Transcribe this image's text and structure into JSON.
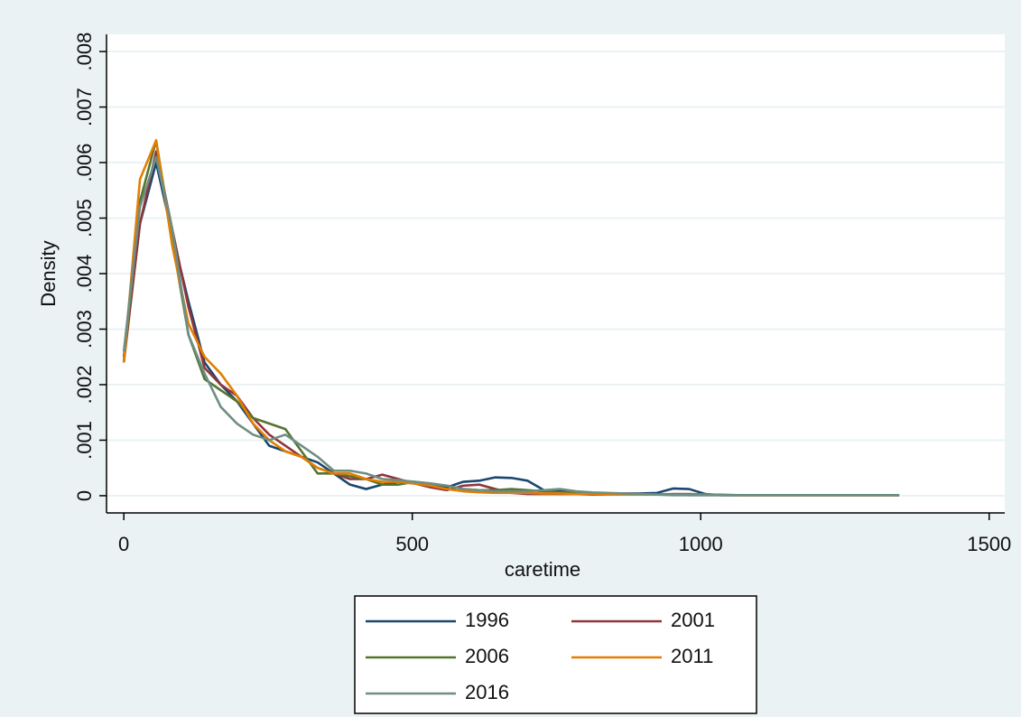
{
  "chart_data": {
    "type": "line",
    "x_label": "caretime",
    "y_label": "Density",
    "x": [
      0,
      28,
      56,
      84,
      112,
      140,
      168,
      196,
      224,
      252,
      280,
      308,
      336,
      364,
      392,
      420,
      448,
      476,
      504,
      532,
      560,
      588,
      616,
      644,
      672,
      700,
      728,
      756,
      784,
      812,
      840,
      868,
      896,
      924,
      952,
      980,
      1008,
      1036,
      1064,
      1092,
      1120,
      1148,
      1176,
      1204,
      1232,
      1260,
      1288,
      1316,
      1344
    ],
    "series": [
      {
        "name": "1996",
        "color": "#1a476f",
        "values": [
          0.0025,
          0.0049,
          0.006,
          0.0047,
          0.0035,
          0.0024,
          0.002,
          0.0017,
          0.0013,
          0.0009,
          0.0008,
          0.0007,
          0.0006,
          0.0004,
          0.0002,
          0.00012,
          0.0002,
          0.00025,
          0.00022,
          0.0002,
          0.00015,
          0.00025,
          0.00027,
          0.00033,
          0.00032,
          0.00027,
          0.0001,
          8e-05,
          6e-05,
          5e-05,
          4e-05,
          4e-05,
          4e-05,
          5e-05,
          0.00013,
          0.00012,
          3e-05,
          1e-05,
          1e-05,
          1e-05,
          1e-05,
          1e-05,
          1e-05,
          1e-05,
          1e-05,
          1e-05,
          1e-05,
          1e-05,
          1e-05
        ]
      },
      {
        "name": "2001",
        "color": "#90353b",
        "values": [
          0.0024,
          0.0049,
          0.0062,
          0.0048,
          0.0034,
          0.0023,
          0.002,
          0.0018,
          0.0014,
          0.0011,
          0.0009,
          0.0007,
          0.0005,
          0.0004,
          0.0003,
          0.0003,
          0.00038,
          0.0003,
          0.00022,
          0.00015,
          0.0001,
          0.00018,
          0.0002,
          0.00012,
          5e-05,
          3e-05,
          3e-05,
          3e-05,
          3e-05,
          2e-05,
          2e-05,
          2e-05,
          2e-05,
          2e-05,
          3e-05,
          3e-05,
          2e-05,
          1e-05,
          1e-05,
          1e-05,
          1e-05,
          1e-05,
          1e-05,
          1e-05,
          1e-05,
          1e-05,
          1e-05,
          1e-05,
          1e-05
        ]
      },
      {
        "name": "2006",
        "color": "#55752f",
        "values": [
          0.0024,
          0.0053,
          0.0064,
          0.0046,
          0.0029,
          0.0021,
          0.0019,
          0.0017,
          0.0014,
          0.0013,
          0.0012,
          0.0008,
          0.0004,
          0.0004,
          0.00035,
          0.0003,
          0.0002,
          0.0002,
          0.00025,
          0.00022,
          0.00018,
          0.00012,
          0.0001,
          0.0001,
          0.00012,
          0.0001,
          8e-05,
          6e-05,
          6e-05,
          4e-05,
          3e-05,
          3e-05,
          2e-05,
          2e-05,
          2e-05,
          1e-05,
          1e-05,
          1e-05,
          1e-05,
          1e-05,
          1e-05,
          1e-05,
          1e-05,
          1e-05,
          1e-05,
          1e-05,
          1e-05,
          1e-05,
          1e-05
        ]
      },
      {
        "name": "2011",
        "color": "#e37e00",
        "values": [
          0.0024,
          0.0057,
          0.0064,
          0.0045,
          0.0031,
          0.0025,
          0.0022,
          0.0018,
          0.0013,
          0.001,
          0.0008,
          0.0007,
          0.0005,
          0.0004,
          0.0004,
          0.0003,
          0.00025,
          0.00025,
          0.00022,
          0.00018,
          0.00012,
          8e-05,
          6e-05,
          5e-05,
          5e-05,
          5e-05,
          4e-05,
          4e-05,
          3e-05,
          3e-05,
          2e-05,
          2e-05,
          2e-05,
          2e-05,
          2e-05,
          2e-05,
          2e-05,
          2e-05,
          1e-05,
          1e-05,
          1e-05,
          1e-05,
          1e-05,
          1e-05,
          1e-05,
          1e-05,
          1e-05,
          1e-05,
          1e-05
        ]
      },
      {
        "name": "2016",
        "color": "#6e8e84",
        "values": [
          0.0026,
          0.0052,
          0.0061,
          0.0048,
          0.0029,
          0.0022,
          0.0016,
          0.0013,
          0.0011,
          0.001,
          0.0011,
          0.0009,
          0.0007,
          0.00045,
          0.00045,
          0.0004,
          0.0003,
          0.00028,
          0.00025,
          0.00022,
          0.00018,
          0.00012,
          0.0001,
          8e-05,
          8e-05,
          8e-05,
          0.0001,
          0.00012,
          8e-05,
          6e-05,
          5e-05,
          4e-05,
          3e-05,
          2e-05,
          1e-05,
          1e-05,
          1e-05,
          1e-05,
          1e-05,
          1e-05,
          1e-05,
          1e-05,
          1e-05,
          1e-05,
          1e-05,
          1e-05,
          1e-05,
          1e-05,
          1e-05
        ]
      }
    ],
    "xlim": [
      -30,
      1527
    ],
    "xticks": [
      0,
      500,
      1000,
      1500
    ],
    "ylim": [
      -0.00031,
      0.00831
    ],
    "yticks": [
      0,
      {
        "value": 0.001,
        "label": ".001"
      },
      {
        "value": 0.002,
        "label": ".002"
      },
      {
        "value": 0.003,
        "label": ".003"
      },
      {
        "value": 0.004,
        "label": ".004"
      },
      {
        "value": 0.005,
        "label": ".005"
      },
      {
        "value": 0.006,
        "label": ".006"
      },
      {
        "value": 0.007,
        "label": ".007"
      },
      {
        "value": 0.008,
        "label": ".008"
      }
    ],
    "grid": true
  }
}
